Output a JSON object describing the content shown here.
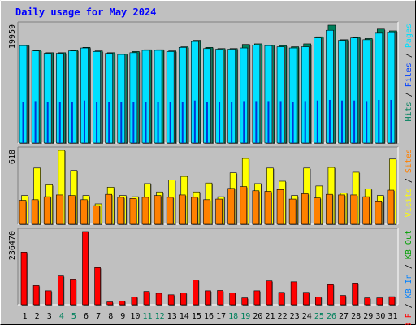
{
  "chart_data": {
    "type": "bar",
    "title": "Daily usage for May 2024",
    "categories": [
      "1",
      "2",
      "3",
      "4",
      "5",
      "6",
      "7",
      "8",
      "9",
      "10",
      "11",
      "12",
      "13",
      "14",
      "15",
      "16",
      "17",
      "18",
      "19",
      "20",
      "21",
      "22",
      "23",
      "24",
      "25",
      "26",
      "27",
      "28",
      "29",
      "30",
      "31"
    ],
    "weekend_days": [
      "4",
      "5",
      "11",
      "12",
      "18",
      "19",
      "25",
      "26"
    ],
    "panels": [
      {
        "name": "hits-files-pages",
        "max_label": "19959",
        "ylim": [
          0,
          19959
        ],
        "legend": [
          {
            "label": "Hits",
            "color": "#00805c"
          },
          {
            "label": "Files",
            "color": "#0040ff"
          },
          {
            "label": "Pages",
            "color": "#00e0ff"
          }
        ],
        "series": [
          {
            "name": "Hits",
            "color": "#00805c",
            "values": [
              16600,
              15700,
              15300,
              15300,
              15700,
              16200,
              15600,
              15300,
              15100,
              15500,
              15800,
              15800,
              15600,
              16300,
              17400,
              16200,
              16000,
              16000,
              16700,
              16800,
              16600,
              16500,
              16300,
              16800,
              18000,
              19959,
              17500,
              17900,
              17700,
              19300,
              19000
            ]
          },
          {
            "name": "Files",
            "color": "#0040ff",
            "values": [
              7000,
              7100,
              7000,
              7000,
              7000,
              7200,
              7000,
              7000,
              7000,
              7000,
              7000,
              7000,
              7000,
              7000,
              7200,
              7000,
              7000,
              7000,
              7100,
              7100,
              7100,
              7100,
              7000,
              7100,
              7200,
              7300,
              7200,
              7200,
              7100,
              7300,
              7300
            ]
          },
          {
            "name": "Pages",
            "color": "#00e0ff",
            "values": [
              16500,
              15600,
              15200,
              15200,
              15600,
              16100,
              15500,
              15200,
              15000,
              15300,
              15700,
              15700,
              15500,
              16200,
              17200,
              16000,
              15900,
              15900,
              16100,
              16600,
              16500,
              16300,
              16100,
              16300,
              17800,
              19100,
              17400,
              17800,
              17500,
              18600,
              18700
            ]
          }
        ]
      },
      {
        "name": "visits-sites",
        "max_label": "618",
        "ylim": [
          0,
          618
        ],
        "legend": [
          {
            "label": "Visits",
            "color": "#ffff00"
          },
          {
            "label": "Sites",
            "color": "#ff8000"
          }
        ],
        "series": [
          {
            "name": "Visits",
            "color": "#ffff00",
            "values": [
              240,
              470,
              330,
              618,
              450,
              240,
              170,
              310,
              240,
              230,
              340,
              270,
              370,
              400,
              270,
              345,
              230,
              430,
              550,
              340,
              470,
              360,
              240,
              470,
              320,
              475,
              260,
              435,
              295,
              240,
              545
            ]
          },
          {
            "name": "Sites",
            "color": "#ff8000",
            "values": [
              200,
              205,
              230,
              245,
              240,
              205,
              155,
              250,
              225,
              215,
              225,
              240,
              225,
              245,
              225,
              205,
              210,
              300,
              315,
              280,
              275,
              290,
              210,
              255,
              220,
              250,
              245,
              245,
              230,
              195,
              285
            ]
          }
        ]
      },
      {
        "name": "kbytes",
        "max_label": "236470",
        "ylim": [
          0,
          236470
        ],
        "legend": [
          {
            "label": "KB F",
            "color": "#ff0000"
          },
          {
            "label": "KB In",
            "color": "#0080ff"
          },
          {
            "label": "KB Out",
            "color": "#00a000"
          }
        ],
        "series": [
          {
            "name": "KB F",
            "color": "#ff0000",
            "values": [
              170000,
              62000,
              45000,
              93000,
              83000,
              236470,
              120000,
              9000,
              12000,
              25000,
              43000,
              37000,
              32000,
              38000,
              80000,
              45000,
              46000,
              38000,
              22000,
              45000,
              77000,
              40000,
              74000,
              40000,
              25000,
              65000,
              30000,
              70000,
              22000,
              22000,
              26000
            ]
          }
        ]
      }
    ]
  },
  "colors": {
    "background": "#c0c0c0",
    "plot_bg": "#c0c0c0",
    "title": "#0000ff",
    "weekday_label": "#000000",
    "weekend_label": "#00805c"
  }
}
